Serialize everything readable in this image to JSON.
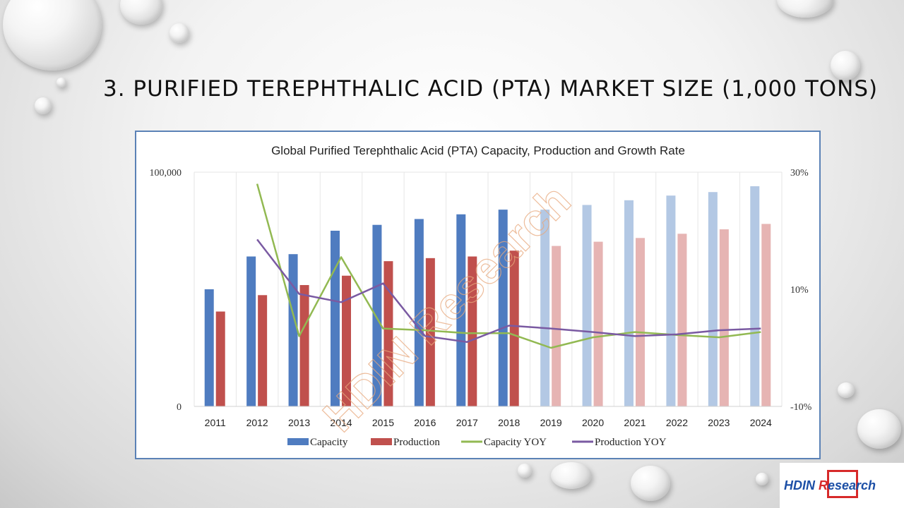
{
  "slide": {
    "title": "3. PURIFIED TEREPHTHALIC ACID (PTA) MARKET SIZE (1,000 TONS)"
  },
  "logo": {
    "part1": "HDIN ",
    "part2": "R",
    "part3": "esearch"
  },
  "colors": {
    "capacity": "#4f7cc0",
    "capacity_forecast": "#b3c8e4",
    "production": "#c0504d",
    "production_forecast": "#e6b4b3",
    "capacity_yoy": "#92b952",
    "production_yoy": "#7a5aa2",
    "frame": "#5b82b6"
  },
  "chart_data": {
    "type": "bar",
    "title": "Global Purified Terephthalic Acid (PTA) Capacity, Production and Growth Rate",
    "categories": [
      "2011",
      "2012",
      "2013",
      "2014",
      "2015",
      "2016",
      "2017",
      "2018",
      "2019",
      "2020",
      "2021",
      "2022",
      "2023",
      "2024"
    ],
    "forecast_from_index": 8,
    "y_left": {
      "min": 0,
      "max": 100000,
      "tick_labels": [
        "0",
        "100,000"
      ]
    },
    "y_right": {
      "min": -10,
      "max": 30,
      "tick_labels": [
        "-10%",
        "10%",
        "30%"
      ]
    },
    "series": [
      {
        "name": "Capacity",
        "kind": "bar",
        "axis": "left",
        "values": [
          50000,
          64000,
          65000,
          75000,
          77500,
          80000,
          82000,
          84000,
          84000,
          86000,
          88000,
          90000,
          91500,
          94000
        ]
      },
      {
        "name": "Production",
        "kind": "bar",
        "axis": "left",
        "values": [
          40500,
          47500,
          51800,
          55800,
          62000,
          63300,
          64000,
          66500,
          68500,
          70300,
          71900,
          73700,
          75600,
          77900
        ]
      },
      {
        "name": "Capacity YOY",
        "kind": "line",
        "axis": "right",
        "values": [
          null,
          28,
          2,
          15.5,
          3.3,
          3,
          2.5,
          2.5,
          0,
          1.8,
          2.7,
          2.2,
          1.8,
          2.7
        ]
      },
      {
        "name": "Production YOY",
        "kind": "line",
        "axis": "right",
        "values": [
          null,
          18.5,
          9.2,
          7.8,
          11,
          2,
          1,
          3.8,
          3.3,
          2.7,
          2,
          2.3,
          3,
          3.3
        ]
      }
    ],
    "legend_position": "bottom",
    "watermark": "HDIN Research"
  }
}
